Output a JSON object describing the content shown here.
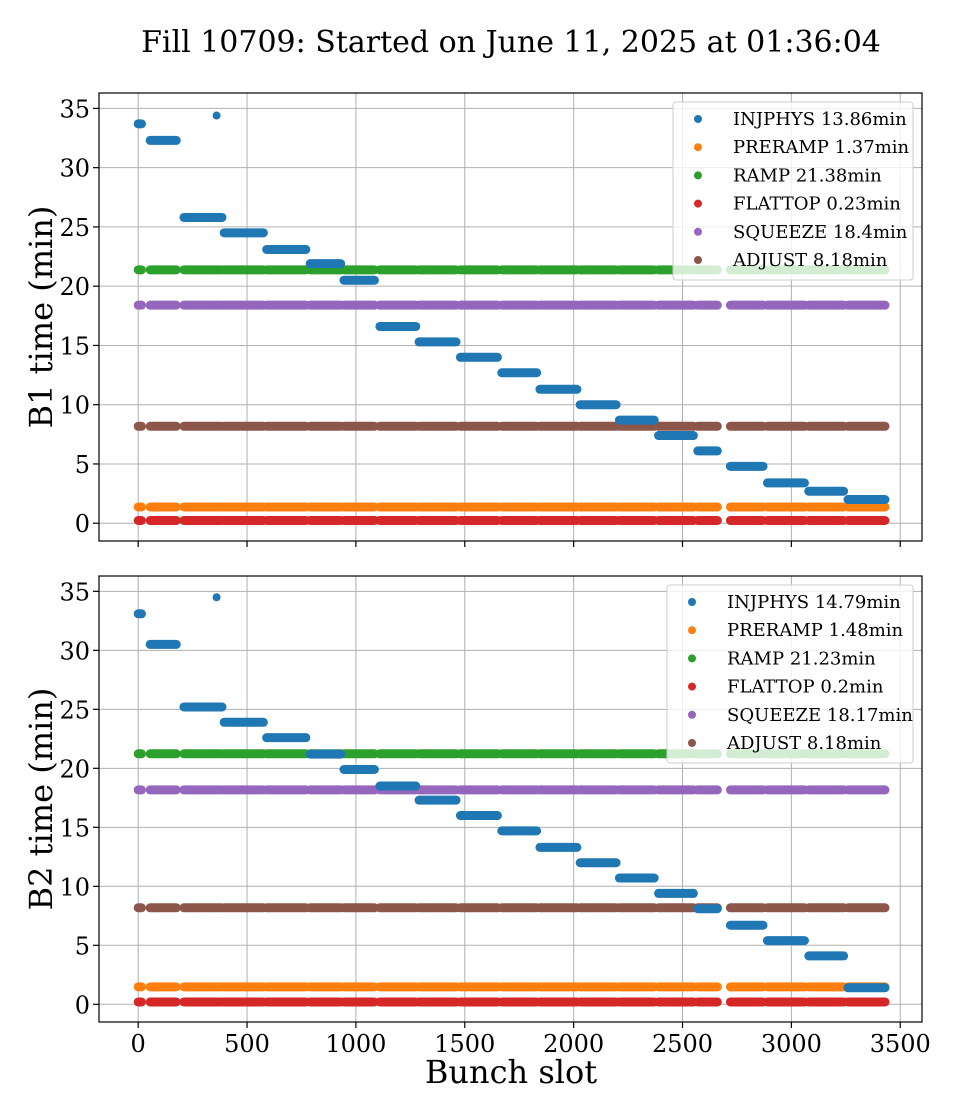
{
  "chart_data": {
    "title": "Fill 10709: Started on June 11, 2025 at 01:36:04",
    "xlabel": "Bunch slot",
    "xlim": [
      -180,
      3600
    ],
    "xticks": [
      0,
      500,
      1000,
      1500,
      2000,
      2500,
      3000,
      3500
    ],
    "grid": true,
    "legend_position": "upper-right",
    "colors": {
      "INJPHYS": "#1f77b4",
      "PRERAMP": "#ff7f0e",
      "RAMP": "#2ca02c",
      "FLATTOP": "#d62728",
      "SQUEEZE": "#9467bd",
      "ADJUST": "#8c564b"
    },
    "segments": [
      [
        0,
        15
      ],
      [
        55,
        175
      ],
      [
        210,
        385
      ],
      [
        395,
        575
      ],
      [
        590,
        770
      ],
      [
        790,
        930
      ],
      [
        945,
        1085
      ],
      [
        1110,
        1275
      ],
      [
        1290,
        1460
      ],
      [
        1480,
        1650
      ],
      [
        1670,
        1830
      ],
      [
        1845,
        2015
      ],
      [
        2030,
        2195
      ],
      [
        2210,
        2370
      ],
      [
        2390,
        2550
      ],
      [
        2570,
        2660
      ],
      [
        2720,
        2870
      ],
      [
        2890,
        3060
      ],
      [
        3080,
        3240
      ],
      [
        3260,
        3430
      ]
    ],
    "panels": [
      {
        "type": "scatter",
        "ylabel": "B1 time (min)",
        "ylim": [
          -1.5,
          36.3
        ],
        "yticks": [
          0,
          5,
          10,
          15,
          20,
          25,
          30,
          35
        ],
        "legend": [
          {
            "series": "INJPHYS",
            "label": "INJPHYS 13.86min"
          },
          {
            "series": "PRERAMP",
            "label": "PRERAMP 1.37min"
          },
          {
            "series": "RAMP",
            "label": "RAMP 21.38min"
          },
          {
            "series": "FLATTOP",
            "label": "FLATTOP 0.23min"
          },
          {
            "series": "SQUEEZE",
            "label": "SQUEEZE 18.4min"
          },
          {
            "series": "ADJUST",
            "label": "ADJUST 8.18min"
          }
        ],
        "constant_series": [
          {
            "series": "PRERAMP",
            "y": 1.37
          },
          {
            "series": "RAMP",
            "y": 21.38
          },
          {
            "series": "FLATTOP",
            "y": 0.23
          },
          {
            "series": "SQUEEZE",
            "y": 18.4
          },
          {
            "series": "ADJUST",
            "y": 8.18
          }
        ],
        "injphys": [
          33.7,
          32.3,
          25.8,
          24.5,
          23.1,
          21.9,
          20.5,
          16.6,
          15.3,
          14.0,
          12.7,
          11.3,
          10.0,
          8.7,
          7.4,
          6.1,
          4.8,
          3.4,
          2.7,
          2.0
        ],
        "injphys_extra": [
          {
            "x": 360,
            "y": 34.4
          }
        ]
      },
      {
        "type": "scatter",
        "ylabel": "B2 time (min)",
        "ylim": [
          -1.5,
          36.3
        ],
        "yticks": [
          0,
          5,
          10,
          15,
          20,
          25,
          30,
          35
        ],
        "legend": [
          {
            "series": "INJPHYS",
            "label": "INJPHYS 14.79min"
          },
          {
            "series": "PRERAMP",
            "label": "PRERAMP 1.48min"
          },
          {
            "series": "RAMP",
            "label": "RAMP 21.23min"
          },
          {
            "series": "FLATTOP",
            "label": "FLATTOP 0.2min"
          },
          {
            "series": "SQUEEZE",
            "label": "SQUEEZE 18.17min"
          },
          {
            "series": "ADJUST",
            "label": "ADJUST 8.18min"
          }
        ],
        "constant_series": [
          {
            "series": "PRERAMP",
            "y": 1.48
          },
          {
            "series": "RAMP",
            "y": 21.23
          },
          {
            "series": "FLATTOP",
            "y": 0.2
          },
          {
            "series": "SQUEEZE",
            "y": 18.17
          },
          {
            "series": "ADJUST",
            "y": 8.18
          }
        ],
        "injphys": [
          33.1,
          30.5,
          25.2,
          23.9,
          22.6,
          21.2,
          19.9,
          18.5,
          17.3,
          16.0,
          14.7,
          13.3,
          12.0,
          10.7,
          9.4,
          8.1,
          6.7,
          5.4,
          4.1,
          1.4
        ],
        "injphys_extra": [
          {
            "x": 360,
            "y": 34.5
          }
        ]
      }
    ]
  }
}
